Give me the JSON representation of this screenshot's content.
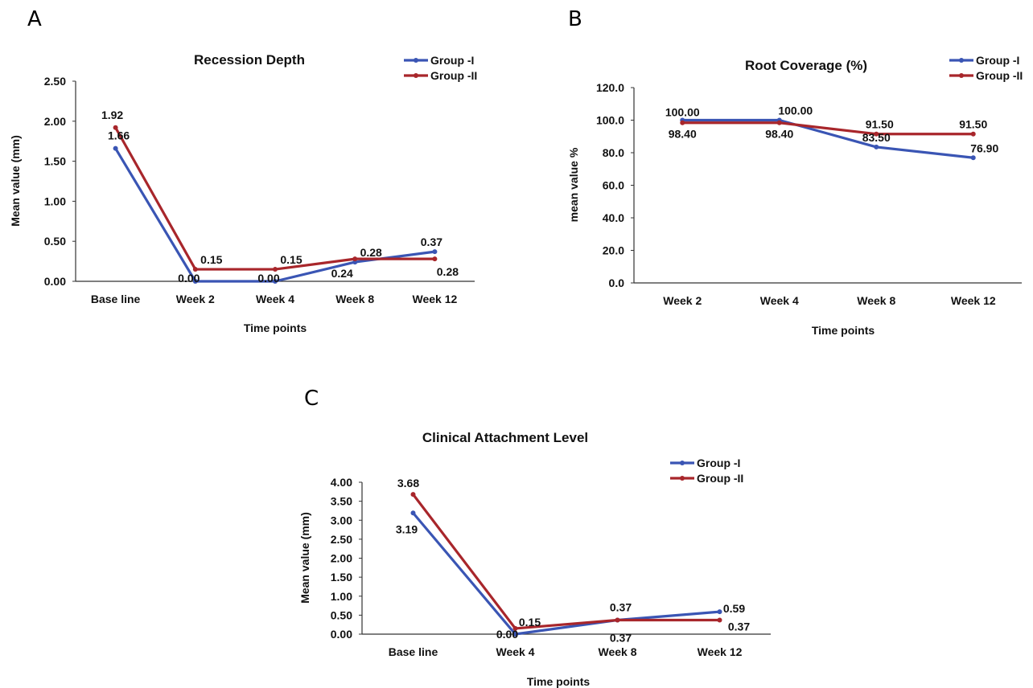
{
  "colors": {
    "group1": "#3a55b4",
    "group2": "#a8262b",
    "axis": "#333333"
  },
  "chart_data": [
    {
      "panel": "A",
      "type": "line",
      "title": "Recession Depth",
      "xlabel": "Time points",
      "ylabel": "Mean value (mm)",
      "categories": [
        "Base line",
        "Week 2",
        "Week 4",
        "Week 8",
        "Week 12"
      ],
      "ylim": [
        0,
        2.5
      ],
      "yticks": [
        "0.00",
        "0.50",
        "1.00",
        "1.50",
        "2.00",
        "2.50"
      ],
      "legend": "top-right",
      "series": [
        {
          "name": "Group -I",
          "values": [
            1.66,
            0.0,
            0.0,
            0.24,
            0.37
          ],
          "labels": [
            "1.66",
            "0.00",
            "0.00",
            "0.24",
            "0.37"
          ]
        },
        {
          "name": "Group -II",
          "values": [
            1.92,
            0.15,
            0.15,
            0.28,
            0.28
          ],
          "labels": [
            "1.92",
            "0.15",
            "0.15",
            "0.28",
            "0.28"
          ]
        }
      ]
    },
    {
      "panel": "B",
      "type": "line",
      "title": "Root Coverage (%)",
      "xlabel": "Time points",
      "ylabel": "mean value %",
      "categories": [
        "Week 2",
        "Week 4",
        "Week 8",
        "Week 12"
      ],
      "ylim": [
        0,
        120
      ],
      "yticks": [
        "0.0",
        "20.0",
        "40.0",
        "60.0",
        "80.0",
        "100.0",
        "120.0"
      ],
      "legend": "top-right",
      "series": [
        {
          "name": "Group -I",
          "values": [
            100.0,
            100.0,
            83.5,
            76.9
          ],
          "labels": [
            "100.00",
            "100.00",
            "83.50",
            "76.90"
          ]
        },
        {
          "name": "Group -II",
          "values": [
            98.4,
            98.4,
            91.5,
            91.5
          ],
          "labels": [
            "98.40",
            "98.40",
            "91.50",
            "91.50"
          ]
        }
      ]
    },
    {
      "panel": "C",
      "type": "line",
      "title": "Clinical Attachment Level",
      "xlabel": "Time points",
      "ylabel": "Mean value (mm)",
      "categories": [
        "Base line",
        "Week 4",
        "Week 8",
        "Week 12"
      ],
      "ylim": [
        0,
        4
      ],
      "yticks": [
        "0.00",
        "0.50",
        "1.00",
        "1.50",
        "2.00",
        "2.50",
        "3.00",
        "3.50",
        "4.00"
      ],
      "legend": "top-right",
      "series": [
        {
          "name": "Group -I",
          "values": [
            3.19,
            0.0,
            0.37,
            0.59
          ],
          "labels": [
            "3.19",
            "0.00",
            "0.37",
            "0.59"
          ]
        },
        {
          "name": "Group -II",
          "values": [
            3.68,
            0.15,
            0.37,
            0.37
          ],
          "labels": [
            "3.68",
            "0.15",
            "0.37",
            "0.37"
          ]
        }
      ]
    }
  ]
}
